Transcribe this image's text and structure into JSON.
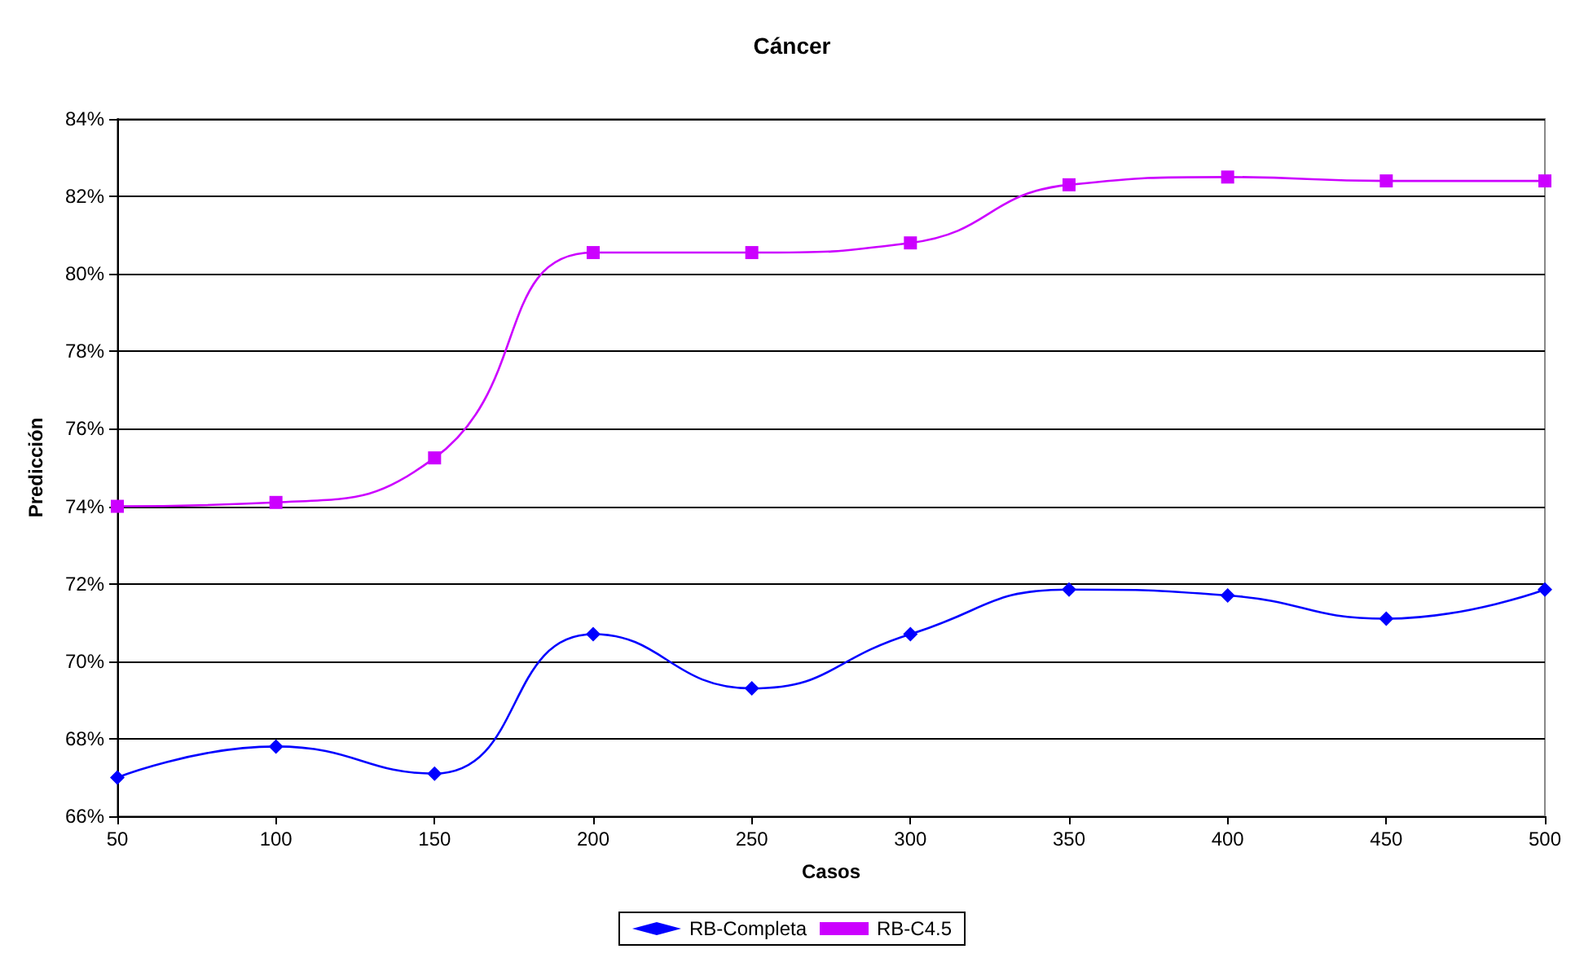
{
  "chart_data": {
    "type": "line",
    "title": "Cáncer",
    "xlabel": "Casos",
    "ylabel": "Predicción",
    "x": [
      50,
      100,
      150,
      200,
      250,
      300,
      350,
      400,
      450,
      500
    ],
    "series": [
      {
        "name": "RB-Completa",
        "color": "#0000ff",
        "marker": "diamond",
        "values": [
          67.0,
          67.8,
          67.1,
          70.7,
          69.3,
          70.7,
          71.85,
          71.7,
          71.1,
          71.85
        ]
      },
      {
        "name": "RB-C4.5",
        "color": "#cc00ff",
        "marker": "square",
        "values": [
          74.0,
          74.1,
          75.25,
          80.55,
          80.55,
          80.8,
          82.3,
          82.5,
          82.4,
          82.4
        ]
      }
    ],
    "xlim": [
      50,
      500
    ],
    "xticks": [
      50,
      100,
      150,
      200,
      250,
      300,
      350,
      400,
      450,
      500
    ],
    "ylim": [
      66,
      84
    ],
    "yticks": [
      {
        "value": 66,
        "label": "66%"
      },
      {
        "value": 68,
        "label": "68%"
      },
      {
        "value": 70,
        "label": "70%"
      },
      {
        "value": 72,
        "label": "72%"
      },
      {
        "value": 74,
        "label": "74%"
      },
      {
        "value": 76,
        "label": "76%"
      },
      {
        "value": 78,
        "label": "78%"
      },
      {
        "value": 80,
        "label": "80%"
      },
      {
        "value": 82,
        "label": "82%"
      },
      {
        "value": 84,
        "label": "84%"
      }
    ],
    "grid": "y",
    "legend": "bottom",
    "line_style": "solid"
  }
}
